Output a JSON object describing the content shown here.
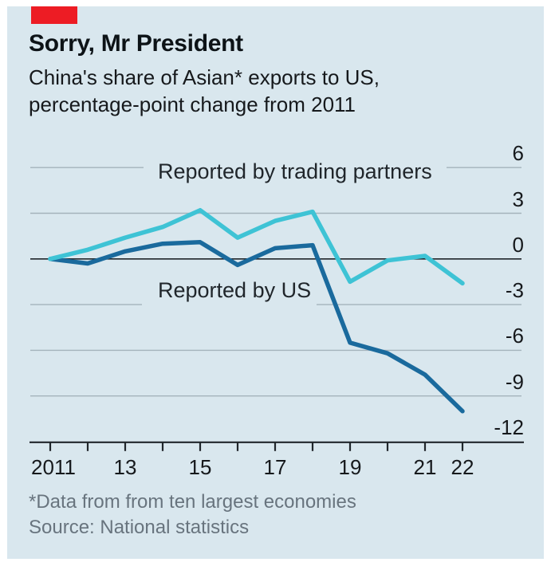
{
  "header": {
    "title": "Sorry, Mr President",
    "subtitle": "China's share of Asian* exports to US, percentage-point change from 2011"
  },
  "chart_data": {
    "type": "line",
    "x": [
      2011,
      2012,
      2013,
      2014,
      2015,
      2016,
      2017,
      2018,
      2019,
      2020,
      2021,
      2022
    ],
    "series": [
      {
        "name": "Reported by trading partners",
        "color": "#3ec3d5",
        "values": [
          0,
          0.6,
          1.4,
          2.1,
          3.2,
          1.4,
          2.5,
          3.1,
          -1.5,
          -0.1,
          0.2,
          -1.6
        ]
      },
      {
        "name": "Reported by US",
        "color": "#1a6a9d",
        "values": [
          0,
          -0.3,
          0.5,
          1.0,
          1.1,
          -0.4,
          0.7,
          0.9,
          -5.5,
          -6.2,
          -7.6,
          -10.0
        ]
      }
    ],
    "ylim": [
      -12,
      6
    ],
    "yticks": [
      6,
      3,
      0,
      -3,
      -6,
      -9,
      -12
    ],
    "xtick_labels": [
      "2011",
      "13",
      "15",
      "17",
      "19",
      "21",
      "22"
    ],
    "xtick_years": [
      2011,
      2013,
      2015,
      2017,
      2019,
      2021,
      2022
    ],
    "grid": "horizontal",
    "legend_position": "inline-annotations",
    "zero_axis": true
  },
  "footer": {
    "footnote": "*Data from from ten largest economies",
    "source": "Source: National statistics"
  },
  "colors": {
    "background": "#d9e7ee",
    "red_tab": "#ed1c24",
    "line_partners": "#3ec3d5",
    "line_us": "#1a6a9d",
    "grid": "#a4b3bb",
    "axis": "#20262b",
    "text": "#16191c",
    "muted": "#68747e"
  }
}
